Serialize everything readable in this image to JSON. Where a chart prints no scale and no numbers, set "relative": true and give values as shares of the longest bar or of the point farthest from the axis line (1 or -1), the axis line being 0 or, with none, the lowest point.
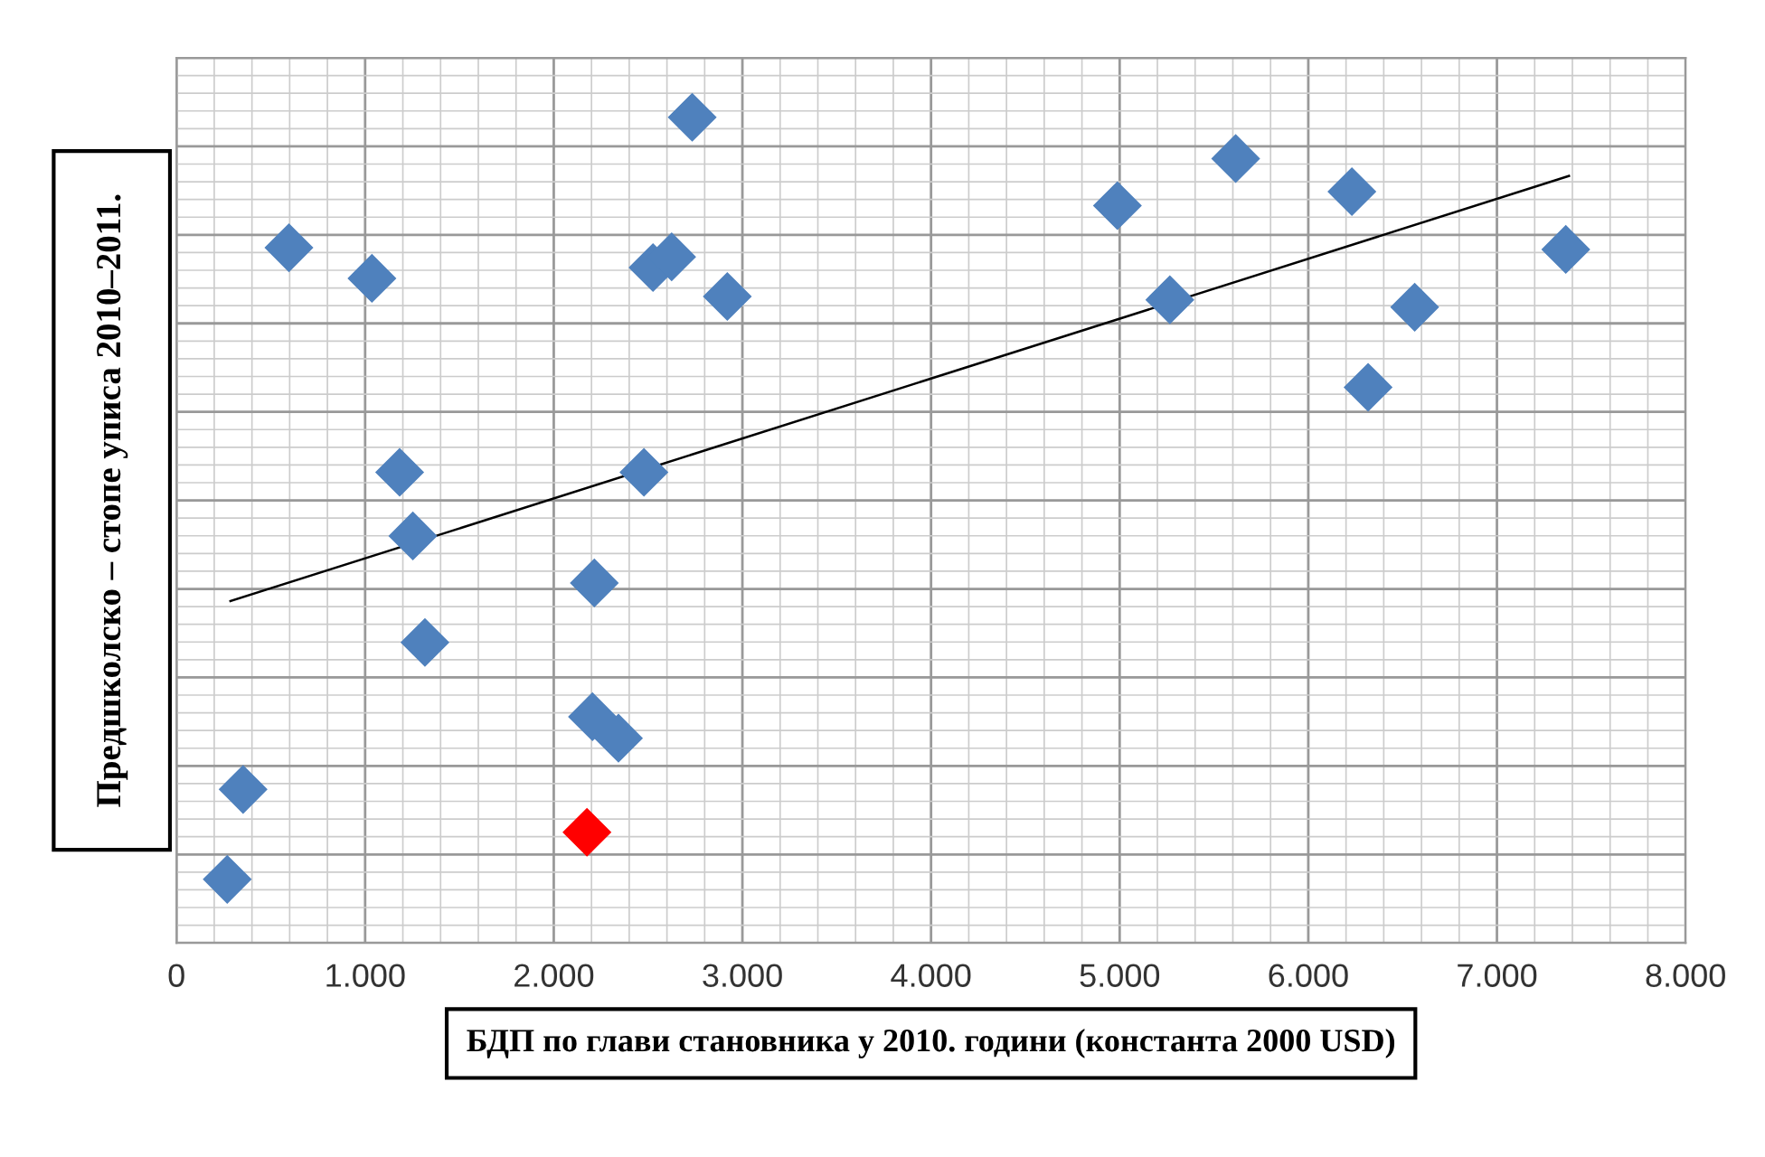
{
  "chart_data": {
    "type": "scatter",
    "relative": true,
    "xlabel": "БДП по глави становника у 2010. години (константа 2000 USD)",
    "ylabel": "Предшколско – стопе уписа 2010–2011.",
    "xlim": [
      0,
      8000
    ],
    "xticks": [
      0,
      {
        "value": 1000,
        "label": "1.000"
      },
      {
        "value": 2000,
        "label": "2.000"
      },
      {
        "value": 3000,
        "label": "3.000"
      },
      {
        "value": 4000,
        "label": "4.000"
      },
      {
        "value": 5000,
        "label": "5.000"
      },
      {
        "value": 6000,
        "label": "6.000"
      },
      {
        "value": 7000,
        "label": "7.000"
      },
      {
        "value": 8000,
        "label": "8.000"
      }
    ],
    "tick_labels": "x",
    "grid": true,
    "legend": false,
    "marker": "diamond",
    "series": [
      {
        "color": "#4f81bd",
        "x": [
          269,
          353,
          596,
          1036,
          1183,
          1253,
          1317,
          2215,
          2205,
          2343,
          2478,
          2526,
          2625,
          2920,
          2734,
          4988,
          5266,
          5615,
          6231,
          6564,
          6317,
          7365
        ],
        "values": [
          0.077,
          0.186,
          0.842,
          0.805,
          0.57,
          0.493,
          0.364,
          0.436,
          0.274,
          0.248,
          0.57,
          0.818,
          0.831,
          0.783,
          1,
          0.893,
          0.779,
          0.95,
          0.91,
          0.77,
          0.673,
          0.84
        ]
      },
      {
        "color": "#ff0000",
        "x": [
          2176
        ],
        "values": [
          0.134
        ]
      },
      {
        "type": "line",
        "color": "#000000",
        "marker": "none",
        "x": [
          286,
          7382
        ],
        "values": [
          0.414,
          0.929
        ]
      }
    ]
  }
}
